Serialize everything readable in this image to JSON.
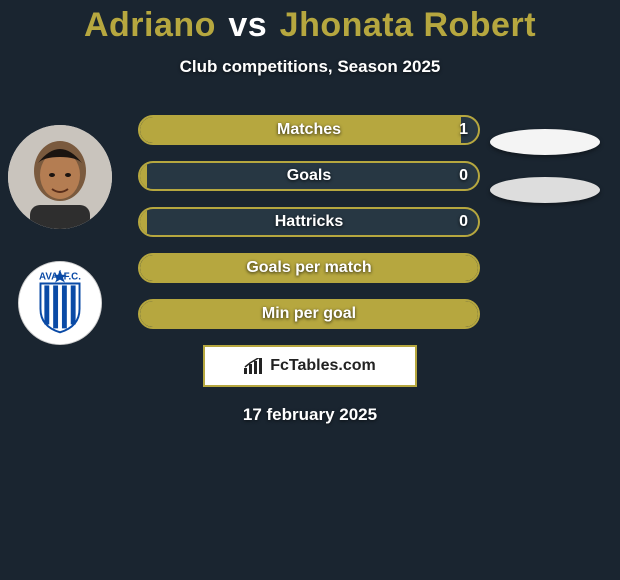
{
  "title": {
    "player1_name": "Adriano",
    "vs": "vs",
    "player2_name": "Jhonata Robert",
    "p1_color": "#b6a73f",
    "vs_color": "#ffffff",
    "p2_color": "#b6a73f",
    "fontsize": 34
  },
  "subtitle": "Club competitions, Season 2025",
  "colors": {
    "background": "#1a2530",
    "accent": "#b6a73f",
    "bar_bg": "#273743",
    "text": "#ffffff"
  },
  "avatars": {
    "player1": {
      "name": "player1-photo",
      "bg": "#dcdcdc"
    },
    "player2_club": {
      "name": "avai-fc-badge",
      "text_top": "AVAÍ F.C.",
      "shield_fill": "#ffffff",
      "stripes": "#0a4aa6",
      "star_fill": "#0a4aa6"
    }
  },
  "stats": [
    {
      "label": "Matches",
      "value": "1",
      "fill_pct": 95
    },
    {
      "label": "Goals",
      "value": "0",
      "fill_pct": 2
    },
    {
      "label": "Hattricks",
      "value": "0",
      "fill_pct": 2
    },
    {
      "label": "Goals per match",
      "value": "",
      "fill_pct": 100
    },
    {
      "label": "Min per goal",
      "value": "",
      "fill_pct": 100
    }
  ],
  "side_blobs": {
    "show": true,
    "color1": "#f4f4f4",
    "color2": "#dddddd"
  },
  "watermark": {
    "text": "FcTables.com",
    "border_color": "#b6a73f",
    "bg": "#ffffff",
    "icon": "bar-chart-icon"
  },
  "date": "17 february 2025"
}
